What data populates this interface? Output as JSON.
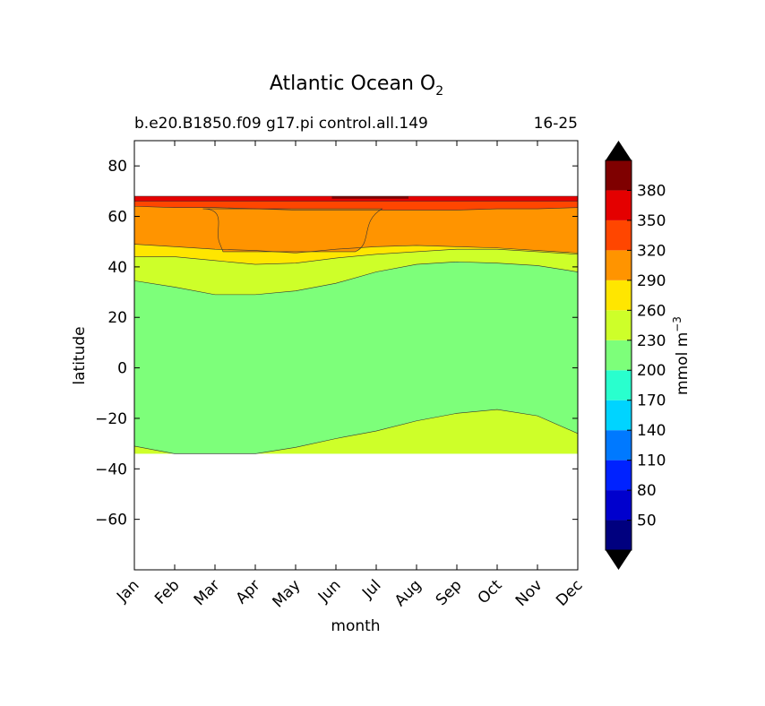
{
  "chart_data": {
    "type": "heatmap",
    "title": "Atlantic Ocean O",
    "title_subscript": "2",
    "subtitle_left": "b.e20.B1850.f09 g17.pi control.all.149",
    "subtitle_right": "16-25",
    "xlabel": "month",
    "ylabel": "latitude",
    "x_ticks": [
      "Jan",
      "Feb",
      "Mar",
      "Apr",
      "May",
      "Jun",
      "Jul",
      "Aug",
      "Sep",
      "Oct",
      "Nov",
      "Dec"
    ],
    "xlim": [
      0,
      11
    ],
    "ylim": [
      -80,
      90
    ],
    "y_ticks": [
      80,
      60,
      40,
      20,
      0,
      -20,
      -40,
      -60
    ],
    "y_tick_labels": [
      "80",
      "60",
      "40",
      "20",
      "0",
      "−20",
      "−40",
      "−60"
    ],
    "data_extent_lat": [
      -34,
      68
    ],
    "colorbar": {
      "label": "mmol m",
      "label_superscript": "−3",
      "levels": [
        20,
        50,
        80,
        110,
        140,
        170,
        200,
        230,
        260,
        290,
        320,
        350,
        380,
        410
      ],
      "tick_labels": [
        "50",
        "80",
        "110",
        "140",
        "170",
        "200",
        "230",
        "260",
        "290",
        "320",
        "350",
        "380"
      ],
      "colors": [
        "#00007f",
        "#0000cd",
        "#0022ff",
        "#0079ff",
        "#00d4ff",
        "#29ffce",
        "#7dff7a",
        "#ceff29",
        "#ffe600",
        "#ff9400",
        "#ff4600",
        "#e40000",
        "#7f0000"
      ],
      "extend_low_color": "#000000",
      "extend_high_color": "#000000"
    },
    "contour_boundaries": [
      {
        "range": [
          230,
          260
        ],
        "lat_at_month": [
          -31,
          -34,
          -34,
          -34,
          -31.5,
          -28,
          -25,
          -21,
          -18,
          -16.5,
          -19,
          -26
        ]
      },
      {
        "range": [
          200,
          230
        ],
        "lat_at_month": [
          34.5,
          32,
          29,
          29,
          30.5,
          33.5,
          38,
          41,
          42,
          41.5,
          40.5,
          38
        ]
      },
      {
        "range": [
          260,
          290
        ],
        "lat_at_month": [
          44,
          44,
          42.5,
          41,
          41.5,
          43.5,
          45,
          46,
          47,
          47,
          46,
          45
        ]
      },
      {
        "range": [
          290,
          320
        ],
        "lat_at_month": [
          49,
          48,
          47,
          46.5,
          45.5,
          47,
          48,
          48.5,
          48,
          47.5,
          46.5,
          45.5
        ]
      },
      {
        "range": [
          320,
          350
        ],
        "lat_at_month": [
          64,
          63.5,
          63.5,
          63,
          62.5,
          62.5,
          62.5,
          62.5,
          62.5,
          63,
          63,
          63.5
        ]
      },
      {
        "range": [
          350,
          380
        ],
        "lat_at_month": [
          66,
          66,
          66,
          66,
          66,
          66,
          66,
          66,
          66,
          66,
          66,
          66
        ]
      }
    ],
    "oxygen_maximum_region": {
      "range": [
        290,
        320
      ],
      "months": [
        "Mar",
        "Apr",
        "May",
        "Jun"
      ],
      "lat_range": [
        45,
        63
      ]
    },
    "peak_region": {
      "range": [
        380,
        410
      ],
      "months": [
        "Jun",
        "Jul"
      ],
      "lat_range": [
        67,
        68
      ]
    }
  }
}
